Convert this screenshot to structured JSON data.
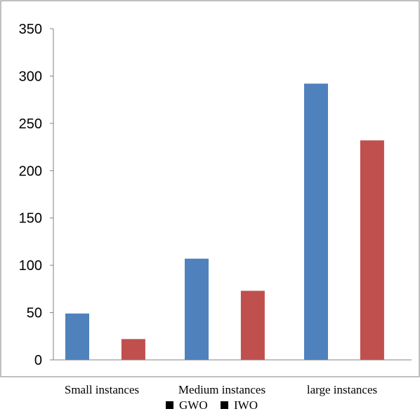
{
  "chart_data": {
    "type": "bar",
    "title": "",
    "xlabel": "",
    "ylabel": "",
    "categories": [
      "Small instances",
      "Medium instances",
      "large instances"
    ],
    "series": [
      {
        "name": "GWO",
        "values": [
          49,
          107,
          292
        ],
        "color": "#4f81bd"
      },
      {
        "name": "IWO",
        "values": [
          22,
          73,
          232
        ],
        "color": "#c0504d"
      }
    ],
    "ylim": [
      0,
      350
    ],
    "yticks": [
      "0",
      "50",
      "100",
      "150",
      "200",
      "250",
      "300",
      "350"
    ],
    "grid": false,
    "legend_position": "bottom"
  }
}
